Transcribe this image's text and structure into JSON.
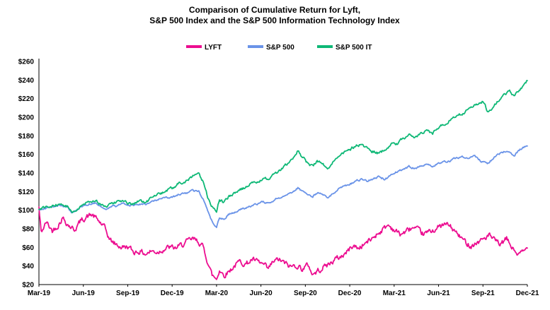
{
  "chart_data": {
    "type": "line",
    "title_lines": [
      "Comparison of Cumulative Return for Lyft,",
      "S&P 500 Index and the S&P 500 Information Technology Index"
    ],
    "legend_position": "top",
    "grid": false,
    "xlim": [
      0,
      33
    ],
    "ylim": [
      20,
      260
    ],
    "x_ticks": [
      {
        "label": "Mar-19",
        "month": 0
      },
      {
        "label": "Jun-19",
        "month": 3
      },
      {
        "label": "Sep-19",
        "month": 6
      },
      {
        "label": "Dec-19",
        "month": 9
      },
      {
        "label": "Mar-20",
        "month": 12
      },
      {
        "label": "Jun-20",
        "month": 15
      },
      {
        "label": "Sep-20",
        "month": 18
      },
      {
        "label": "Dec-20",
        "month": 21
      },
      {
        "label": "Mar-21",
        "month": 24
      },
      {
        "label": "Jun-21",
        "month": 27
      },
      {
        "label": "Sep-21",
        "month": 30
      },
      {
        "label": "Dec-21",
        "month": 33
      }
    ],
    "y_ticks": [
      {
        "label": "$20",
        "value": 20
      },
      {
        "label": "$40",
        "value": 40
      },
      {
        "label": "$60",
        "value": 60
      },
      {
        "label": "$80",
        "value": 80
      },
      {
        "label": "$100",
        "value": 100
      },
      {
        "label": "$120",
        "value": 120
      },
      {
        "label": "$140",
        "value": 140
      },
      {
        "label": "$160",
        "value": 160
      },
      {
        "label": "$180",
        "value": 180
      },
      {
        "label": "$200",
        "value": 200
      },
      {
        "label": "$220",
        "value": 220
      },
      {
        "label": "$240",
        "value": 240
      },
      {
        "label": "$260",
        "value": 260
      }
    ],
    "series": [
      {
        "name": "LYFT",
        "color": "#EC0D90",
        "noise": 5,
        "points": [
          [
            0,
            103
          ],
          [
            0.15,
            76
          ],
          [
            0.5,
            87
          ],
          [
            0.9,
            78
          ],
          [
            1.3,
            84
          ],
          [
            1.6,
            92
          ],
          [
            2,
            84
          ],
          [
            2.4,
            79
          ],
          [
            2.8,
            88
          ],
          [
            3.2,
            93
          ],
          [
            3.6,
            95
          ],
          [
            4,
            89
          ],
          [
            4.4,
            82
          ],
          [
            4.8,
            68
          ],
          [
            5.2,
            63
          ],
          [
            5.6,
            60
          ],
          [
            6,
            61
          ],
          [
            6.4,
            55
          ],
          [
            6.8,
            56
          ],
          [
            7.2,
            53
          ],
          [
            7.6,
            56
          ],
          [
            8,
            55
          ],
          [
            8.4,
            58
          ],
          [
            8.8,
            60
          ],
          [
            9.2,
            59
          ],
          [
            9.6,
            62
          ],
          [
            10,
            66
          ],
          [
            10.4,
            69
          ],
          [
            10.8,
            66
          ],
          [
            11.1,
            60
          ],
          [
            11.4,
            45
          ],
          [
            11.7,
            30
          ],
          [
            12,
            26
          ],
          [
            12.2,
            36
          ],
          [
            12.5,
            30
          ],
          [
            12.8,
            34
          ],
          [
            13.2,
            40
          ],
          [
            13.6,
            45
          ],
          [
            14,
            42
          ],
          [
            14.4,
            47
          ],
          [
            14.8,
            44
          ],
          [
            15.2,
            41
          ],
          [
            15.5,
            36
          ],
          [
            15.8,
            44
          ],
          [
            16.2,
            47
          ],
          [
            16.6,
            43
          ],
          [
            17,
            39
          ],
          [
            17.4,
            41
          ],
          [
            17.8,
            37
          ],
          [
            18.2,
            41
          ],
          [
            18.5,
            31
          ],
          [
            18.8,
            34
          ],
          [
            19.2,
            39
          ],
          [
            19.6,
            42
          ],
          [
            20,
            47
          ],
          [
            20.4,
            50
          ],
          [
            20.8,
            55
          ],
          [
            21.2,
            62
          ],
          [
            21.6,
            59
          ],
          [
            22,
            64
          ],
          [
            22.4,
            68
          ],
          [
            22.8,
            74
          ],
          [
            23.2,
            79
          ],
          [
            23.6,
            84
          ],
          [
            24,
            79
          ],
          [
            24.4,
            74
          ],
          [
            24.8,
            77
          ],
          [
            25.2,
            81
          ],
          [
            25.6,
            78
          ],
          [
            26,
            74
          ],
          [
            26.4,
            77
          ],
          [
            26.8,
            80
          ],
          [
            27.2,
            83
          ],
          [
            27.6,
            85
          ],
          [
            28,
            79
          ],
          [
            28.4,
            72
          ],
          [
            28.8,
            66
          ],
          [
            29.2,
            62
          ],
          [
            29.6,
            65
          ],
          [
            30,
            69
          ],
          [
            30.4,
            73
          ],
          [
            30.8,
            67
          ],
          [
            31.2,
            63
          ],
          [
            31.6,
            69
          ],
          [
            32,
            59
          ],
          [
            32.4,
            52
          ],
          [
            32.7,
            55
          ],
          [
            33,
            59
          ]
        ]
      },
      {
        "name": "S&P 500",
        "color": "#6A93E8",
        "noise": 1.8,
        "points": [
          [
            0,
            100
          ],
          [
            0.5,
            102
          ],
          [
            1,
            104
          ],
          [
            1.5,
            106
          ],
          [
            1.9,
            103
          ],
          [
            2.2,
            98
          ],
          [
            2.6,
            101
          ],
          [
            3,
            104
          ],
          [
            3.4,
            107
          ],
          [
            3.8,
            108
          ],
          [
            4.2,
            104
          ],
          [
            4.5,
            101
          ],
          [
            4.9,
            104
          ],
          [
            5.3,
            105
          ],
          [
            5.7,
            107
          ],
          [
            6,
            106
          ],
          [
            6.4,
            105
          ],
          [
            6.8,
            107
          ],
          [
            7.2,
            106
          ],
          [
            7.6,
            109
          ],
          [
            8,
            111
          ],
          [
            8.5,
            113
          ],
          [
            9,
            114
          ],
          [
            9.5,
            117
          ],
          [
            10,
            119
          ],
          [
            10.4,
            121
          ],
          [
            10.8,
            120
          ],
          [
            11.1,
            112
          ],
          [
            11.4,
            100
          ],
          [
            11.7,
            88
          ],
          [
            12,
            81
          ],
          [
            12.2,
            92
          ],
          [
            12.5,
            90
          ],
          [
            12.8,
            95
          ],
          [
            13.2,
            98
          ],
          [
            13.6,
            101
          ],
          [
            14,
            102
          ],
          [
            14.4,
            105
          ],
          [
            14.8,
            107
          ],
          [
            15.2,
            109
          ],
          [
            15.6,
            107
          ],
          [
            16,
            112
          ],
          [
            16.4,
            114
          ],
          [
            16.8,
            117
          ],
          [
            17.2,
            120
          ],
          [
            17.5,
            124
          ],
          [
            17.8,
            120
          ],
          [
            18.2,
            117
          ],
          [
            18.5,
            115
          ],
          [
            18.8,
            119
          ],
          [
            19.2,
            117
          ],
          [
            19.5,
            113
          ],
          [
            19.9,
            118
          ],
          [
            20.3,
            124
          ],
          [
            20.7,
            126
          ],
          [
            21,
            128
          ],
          [
            21.4,
            131
          ],
          [
            21.8,
            133
          ],
          [
            22.2,
            131
          ],
          [
            22.6,
            134
          ],
          [
            23,
            136
          ],
          [
            23.4,
            133
          ],
          [
            23.8,
            138
          ],
          [
            24.2,
            141
          ],
          [
            24.6,
            144
          ],
          [
            25,
            147
          ],
          [
            25.4,
            145
          ],
          [
            25.8,
            147
          ],
          [
            26.2,
            149
          ],
          [
            26.6,
            147
          ],
          [
            27,
            150
          ],
          [
            27.4,
            152
          ],
          [
            27.8,
            153
          ],
          [
            28.2,
            156
          ],
          [
            28.6,
            158
          ],
          [
            29,
            157
          ],
          [
            29.4,
            159
          ],
          [
            29.7,
            154
          ],
          [
            30,
            152
          ],
          [
            30.3,
            150
          ],
          [
            30.7,
            156
          ],
          [
            31,
            160
          ],
          [
            31.4,
            163
          ],
          [
            31.8,
            162
          ],
          [
            32.1,
            158
          ],
          [
            32.4,
            164
          ],
          [
            32.7,
            167
          ],
          [
            33,
            169
          ]
        ]
      },
      {
        "name": "S&P 500 IT",
        "color": "#0EB876",
        "noise": 2.6,
        "points": [
          [
            0,
            100
          ],
          [
            0.5,
            103
          ],
          [
            1,
            105
          ],
          [
            1.5,
            107
          ],
          [
            1.9,
            104
          ],
          [
            2.2,
            97
          ],
          [
            2.6,
            101
          ],
          [
            3,
            106
          ],
          [
            3.4,
            109
          ],
          [
            3.8,
            110
          ],
          [
            4.2,
            106
          ],
          [
            4.5,
            103
          ],
          [
            4.9,
            107
          ],
          [
            5.3,
            109
          ],
          [
            5.7,
            110
          ],
          [
            6,
            108
          ],
          [
            6.4,
            107
          ],
          [
            6.8,
            110
          ],
          [
            7.2,
            109
          ],
          [
            7.6,
            113
          ],
          [
            8,
            116
          ],
          [
            8.5,
            120
          ],
          [
            9,
            124
          ],
          [
            9.5,
            129
          ],
          [
            10,
            132
          ],
          [
            10.4,
            136
          ],
          [
            10.8,
            139
          ],
          [
            11.1,
            130
          ],
          [
            11.4,
            114
          ],
          [
            11.7,
            104
          ],
          [
            12,
            97
          ],
          [
            12.2,
            112
          ],
          [
            12.5,
            108
          ],
          [
            12.8,
            114
          ],
          [
            13.2,
            118
          ],
          [
            13.6,
            122
          ],
          [
            14,
            125
          ],
          [
            14.4,
            129
          ],
          [
            14.8,
            131
          ],
          [
            15.2,
            133
          ],
          [
            15.6,
            135
          ],
          [
            16,
            139
          ],
          [
            16.4,
            144
          ],
          [
            16.8,
            150
          ],
          [
            17.2,
            156
          ],
          [
            17.5,
            164
          ],
          [
            17.8,
            157
          ],
          [
            18.2,
            150
          ],
          [
            18.5,
            147
          ],
          [
            18.8,
            153
          ],
          [
            19.2,
            150
          ],
          [
            19.5,
            145
          ],
          [
            19.9,
            153
          ],
          [
            20.3,
            159
          ],
          [
            20.7,
            163
          ],
          [
            21,
            165
          ],
          [
            21.4,
            169
          ],
          [
            21.8,
            171
          ],
          [
            22.2,
            167
          ],
          [
            22.6,
            163
          ],
          [
            23,
            161
          ],
          [
            23.4,
            166
          ],
          [
            23.8,
            171
          ],
          [
            24.2,
            172
          ],
          [
            24.6,
            177
          ],
          [
            25,
            181
          ],
          [
            25.4,
            179
          ],
          [
            25.8,
            182
          ],
          [
            26.2,
            185
          ],
          [
            26.6,
            182
          ],
          [
            27,
            189
          ],
          [
            27.4,
            193
          ],
          [
            27.8,
            197
          ],
          [
            28.2,
            200
          ],
          [
            28.6,
            204
          ],
          [
            29,
            208
          ],
          [
            29.4,
            212
          ],
          [
            29.7,
            215
          ],
          [
            30,
            217
          ],
          [
            30.3,
            207
          ],
          [
            30.7,
            211
          ],
          [
            31,
            217
          ],
          [
            31.4,
            224
          ],
          [
            31.8,
            229
          ],
          [
            32.1,
            222
          ],
          [
            32.4,
            228
          ],
          [
            32.7,
            233
          ],
          [
            33,
            240
          ]
        ]
      }
    ]
  }
}
